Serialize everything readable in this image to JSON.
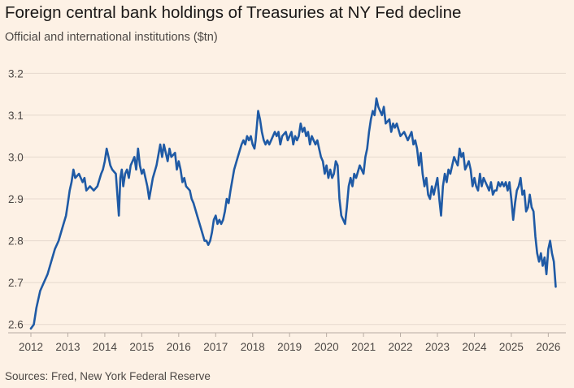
{
  "title": "Foreign central bank holdings of Treasuries at NY Fed decline",
  "subtitle": "Official and international institutions ($tn)",
  "source": "Sources: Fred, New York Federal Reserve",
  "chart_data": {
    "type": "line",
    "title": "Foreign central bank holdings of Treasuries at NY Fed decline",
    "subtitle": "Official and international institutions ($tn)",
    "xlabel": "",
    "ylabel": "",
    "xlim": [
      2012.0,
      2026.3
    ],
    "ylim": [
      2.58,
      3.22
    ],
    "yticks": [
      2.6,
      2.7,
      2.8,
      2.9,
      3.0,
      3.1,
      3.2
    ],
    "ytick_labels": [
      "2.6",
      "2.7",
      "2.8",
      "2.9",
      "3.0",
      "3.1",
      "3.2"
    ],
    "xticks": [
      2012,
      2013,
      2014,
      2015,
      2016,
      2017,
      2018,
      2019,
      2020,
      2021,
      2022,
      2023,
      2024,
      2025,
      2026
    ],
    "xtick_labels": [
      "2012",
      "2013",
      "2014",
      "2015",
      "2016",
      "2017",
      "2018",
      "2019",
      "2020",
      "2021",
      "2022",
      "2023",
      "2024",
      "2025",
      "2026"
    ],
    "grid": true,
    "color": "#1f5aa5",
    "series": [
      {
        "x": [
          2012.0,
          2012.08,
          2012.15,
          2012.25,
          2012.35,
          2012.45,
          2012.55,
          2012.65,
          2012.75,
          2012.85,
          2012.95,
          2013.0,
          2013.05,
          2013.1,
          2013.15,
          2013.2,
          2013.3,
          2013.4,
          2013.45,
          2013.5,
          2013.6,
          2013.7,
          2013.8,
          2013.9,
          2013.95,
          2014.0,
          2014.05,
          2014.1,
          2014.15,
          2014.2,
          2014.3,
          2014.38,
          2014.42,
          2014.46,
          2014.5,
          2014.55,
          2014.6,
          2014.65,
          2014.7,
          2014.75,
          2014.8,
          2014.85,
          2014.9,
          2014.95,
          2015.0,
          2015.05,
          2015.1,
          2015.15,
          2015.2,
          2015.3,
          2015.4,
          2015.5,
          2015.55,
          2015.6,
          2015.7,
          2015.75,
          2015.8,
          2015.9,
          2015.95,
          2016.0,
          2016.05,
          2016.1,
          2016.15,
          2016.2,
          2016.3,
          2016.35,
          2016.4,
          2016.5,
          2016.6,
          2016.7,
          2016.75,
          2016.8,
          2016.85,
          2016.9,
          2016.95,
          2017.0,
          2017.05,
          2017.1,
          2017.15,
          2017.2,
          2017.25,
          2017.3,
          2017.35,
          2017.4,
          2017.5,
          2017.6,
          2017.7,
          2017.75,
          2017.8,
          2017.85,
          2017.9,
          2017.95,
          2018.0,
          2018.05,
          2018.08,
          2018.12,
          2018.15,
          2018.2,
          2018.25,
          2018.3,
          2018.35,
          2018.4,
          2018.45,
          2018.5,
          2018.6,
          2018.65,
          2018.7,
          2018.75,
          2018.8,
          2018.9,
          2018.95,
          2019.0,
          2019.05,
          2019.1,
          2019.15,
          2019.2,
          2019.25,
          2019.3,
          2019.35,
          2019.4,
          2019.45,
          2019.5,
          2019.55,
          2019.6,
          2019.7,
          2019.75,
          2019.8,
          2019.85,
          2019.9,
          2019.95,
          2020.0,
          2020.05,
          2020.1,
          2020.15,
          2020.2,
          2020.25,
          2020.3,
          2020.35,
          2020.4,
          2020.5,
          2020.55,
          2020.6,
          2020.65,
          2020.7,
          2020.75,
          2020.8,
          2020.9,
          2021.0,
          2021.05,
          2021.1,
          2021.15,
          2021.2,
          2021.25,
          2021.3,
          2021.35,
          2021.4,
          2021.45,
          2021.5,
          2021.55,
          2021.6,
          2021.7,
          2021.75,
          2021.8,
          2021.85,
          2021.9,
          2022.0,
          2022.1,
          2022.2,
          2022.3,
          2022.35,
          2022.4,
          2022.45,
          2022.5,
          2022.55,
          2022.6,
          2022.65,
          2022.7,
          2022.75,
          2022.8,
          2022.85,
          2022.9,
          2022.95,
          2023.0,
          2023.05,
          2023.1,
          2023.15,
          2023.2,
          2023.25,
          2023.3,
          2023.35,
          2023.4,
          2023.45,
          2023.5,
          2023.55,
          2023.6,
          2023.65,
          2023.7,
          2023.75,
          2023.8,
          2023.85,
          2023.9,
          2023.95,
          2024.0,
          2024.05,
          2024.1,
          2024.15,
          2024.2,
          2024.25,
          2024.3,
          2024.35,
          2024.4,
          2024.45,
          2024.5,
          2024.55,
          2024.6,
          2024.65,
          2024.7,
          2024.75,
          2024.8,
          2024.85,
          2024.9,
          2024.95,
          2025.0,
          2025.05,
          2025.1,
          2025.15,
          2025.2,
          2025.25,
          2025.3,
          2025.35,
          2025.4,
          2025.45,
          2025.5,
          2025.55,
          2025.6,
          2025.65,
          2025.7,
          2025.75,
          2025.8,
          2025.85,
          2025.9,
          2025.95,
          2026.0,
          2026.05,
          2026.1,
          2026.15,
          2026.2
        ],
        "y": [
          2.59,
          2.6,
          2.64,
          2.68,
          2.7,
          2.72,
          2.75,
          2.78,
          2.8,
          2.83,
          2.86,
          2.89,
          2.92,
          2.94,
          2.97,
          2.95,
          2.96,
          2.94,
          2.95,
          2.92,
          2.93,
          2.92,
          2.93,
          2.96,
          2.97,
          2.99,
          3.02,
          3.0,
          2.98,
          2.97,
          2.96,
          2.86,
          2.95,
          2.97,
          2.93,
          2.96,
          2.97,
          2.95,
          2.98,
          2.99,
          3.0,
          2.97,
          3.02,
          2.98,
          2.96,
          2.97,
          2.95,
          2.93,
          2.9,
          2.95,
          2.98,
          3.03,
          3.0,
          3.03,
          2.99,
          3.02,
          3.0,
          3.01,
          2.97,
          2.99,
          2.97,
          2.94,
          2.95,
          2.93,
          2.92,
          2.9,
          2.89,
          2.86,
          2.83,
          2.8,
          2.8,
          2.79,
          2.8,
          2.82,
          2.85,
          2.86,
          2.84,
          2.85,
          2.84,
          2.85,
          2.87,
          2.9,
          2.89,
          2.92,
          2.97,
          3.0,
          3.03,
          3.04,
          3.03,
          3.05,
          3.04,
          3.05,
          3.03,
          3.02,
          3.04,
          3.08,
          3.11,
          3.09,
          3.06,
          3.04,
          3.03,
          3.04,
          3.03,
          3.04,
          3.06,
          3.05,
          3.06,
          3.03,
          3.05,
          3.06,
          3.04,
          3.05,
          3.06,
          3.03,
          3.05,
          3.04,
          3.05,
          3.08,
          3.06,
          3.07,
          3.05,
          3.06,
          3.03,
          3.05,
          3.03,
          3.04,
          3.02,
          3.0,
          2.99,
          2.96,
          2.98,
          2.95,
          2.97,
          2.95,
          2.96,
          2.99,
          2.98,
          2.9,
          2.86,
          2.84,
          2.88,
          2.93,
          2.95,
          2.93,
          2.96,
          2.95,
          2.98,
          2.96,
          3.0,
          3.02,
          3.06,
          3.09,
          3.11,
          3.1,
          3.14,
          3.12,
          3.11,
          3.1,
          3.12,
          3.08,
          3.09,
          3.06,
          3.08,
          3.07,
          3.08,
          3.05,
          3.06,
          3.04,
          3.06,
          3.03,
          3.04,
          3.02,
          2.98,
          3.01,
          2.96,
          2.93,
          2.95,
          2.91,
          2.9,
          2.93,
          2.91,
          2.93,
          2.95,
          2.9,
          2.86,
          2.93,
          2.96,
          2.94,
          2.97,
          2.96,
          2.98,
          3.0,
          2.99,
          2.98,
          3.02,
          3.0,
          3.01,
          2.97,
          2.98,
          2.99,
          2.97,
          2.93,
          2.95,
          2.93,
          2.92,
          2.96,
          2.93,
          2.95,
          2.94,
          2.93,
          2.92,
          2.94,
          2.91,
          2.92,
          2.92,
          2.94,
          2.93,
          2.94,
          2.93,
          2.94,
          2.92,
          2.94,
          2.9,
          2.85,
          2.89,
          2.92,
          2.93,
          2.95,
          2.91,
          2.92,
          2.87,
          2.88,
          2.91,
          2.88,
          2.87,
          2.81,
          2.77,
          2.75,
          2.77,
          2.74,
          2.76,
          2.72,
          2.78,
          2.8,
          2.77,
          2.75,
          2.69
        ]
      }
    ]
  }
}
